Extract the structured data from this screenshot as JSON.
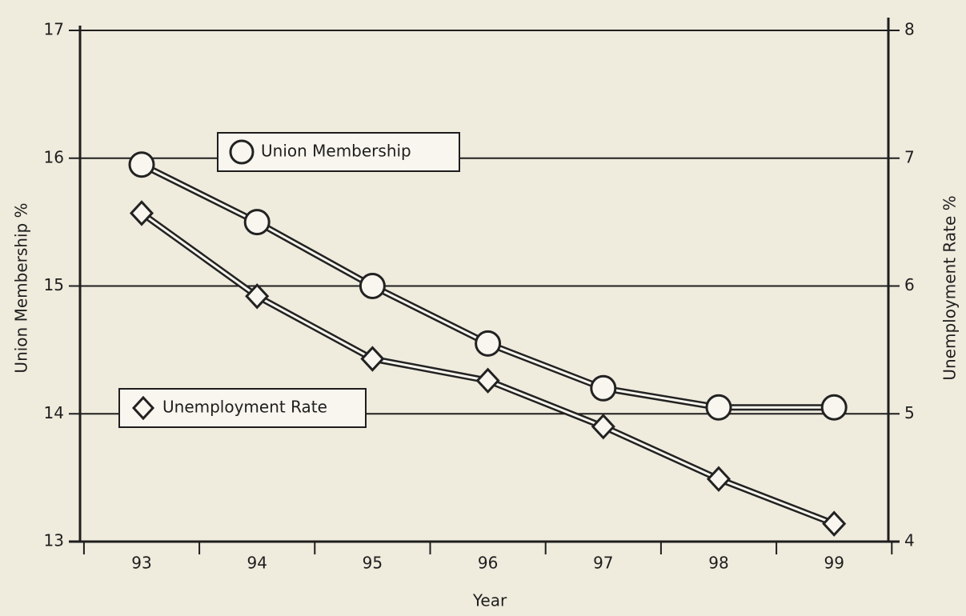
{
  "chart_data": {
    "type": "line",
    "categories": [
      "93",
      "94",
      "95",
      "96",
      "97",
      "98",
      "99"
    ],
    "x_label": "Year",
    "y_label": "Union Membership %",
    "y2_label": "Unemployment Rate %",
    "ylim": [
      13,
      17
    ],
    "yticks": [
      13,
      14,
      15,
      16,
      17
    ],
    "y2lim": [
      4,
      8
    ],
    "y2ticks": [
      4,
      5,
      6,
      7,
      8
    ],
    "grid": true,
    "series": [
      {
        "name": "Union Membership",
        "color": "#222222",
        "marker": "circle",
        "values": [
          15.95,
          15.5,
          15.0,
          14.55,
          14.2,
          14.05,
          14.05
        ]
      },
      {
        "name": "Unemployment Rate",
        "color": "#222222",
        "marker": "diamond",
        "axis": "y2",
        "values": [
          6.57,
          5.92,
          5.43,
          5.26,
          4.9,
          4.49,
          4.14
        ]
      }
    ]
  }
}
